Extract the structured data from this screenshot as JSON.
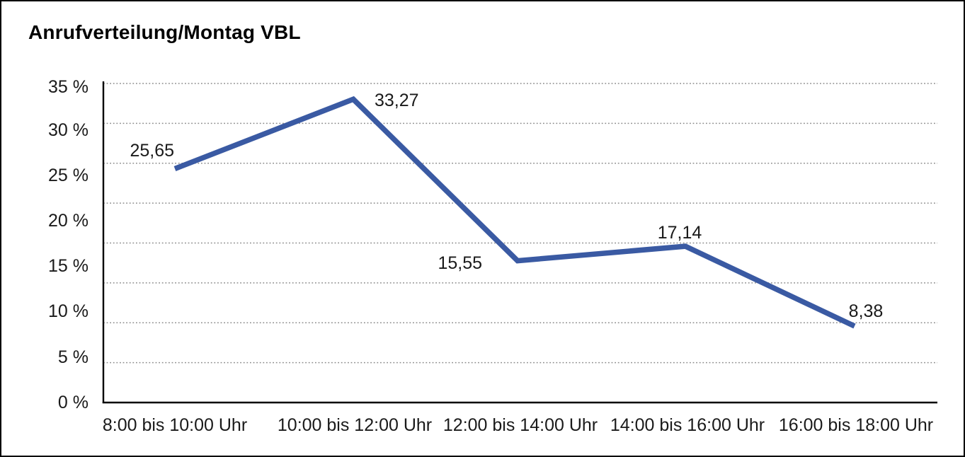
{
  "title": "Anrufverteilung/Montag VBL",
  "chart_data": {
    "type": "line",
    "title": "Anrufverteilung/Montag VBL",
    "categories": [
      "8:00 bis 10:00 Uhr",
      "10:00 bis 12:00 Uhr",
      "12:00 bis 14:00 Uhr",
      "14:00 bis 16:00 Uhr",
      "16:00 bis 18:00 Uhr"
    ],
    "values": [
      25.65,
      33.27,
      15.55,
      17.14,
      8.38
    ],
    "values_formatted": [
      "25,65",
      "33,27",
      "15,55",
      "17,14",
      "8,38"
    ],
    "y_ticks": [
      "35 %",
      "30 %",
      "25 %",
      "20 %",
      "15 %",
      "10 %",
      "5 %",
      "0 %"
    ],
    "ylim": [
      0,
      35
    ],
    "xlabel": "",
    "ylabel": "",
    "grid": "dotted-horizontal",
    "legend_position": "none",
    "line_color": "#3A5AA3",
    "grid_color": "#8c8c8c",
    "axis_color": "#000000"
  }
}
